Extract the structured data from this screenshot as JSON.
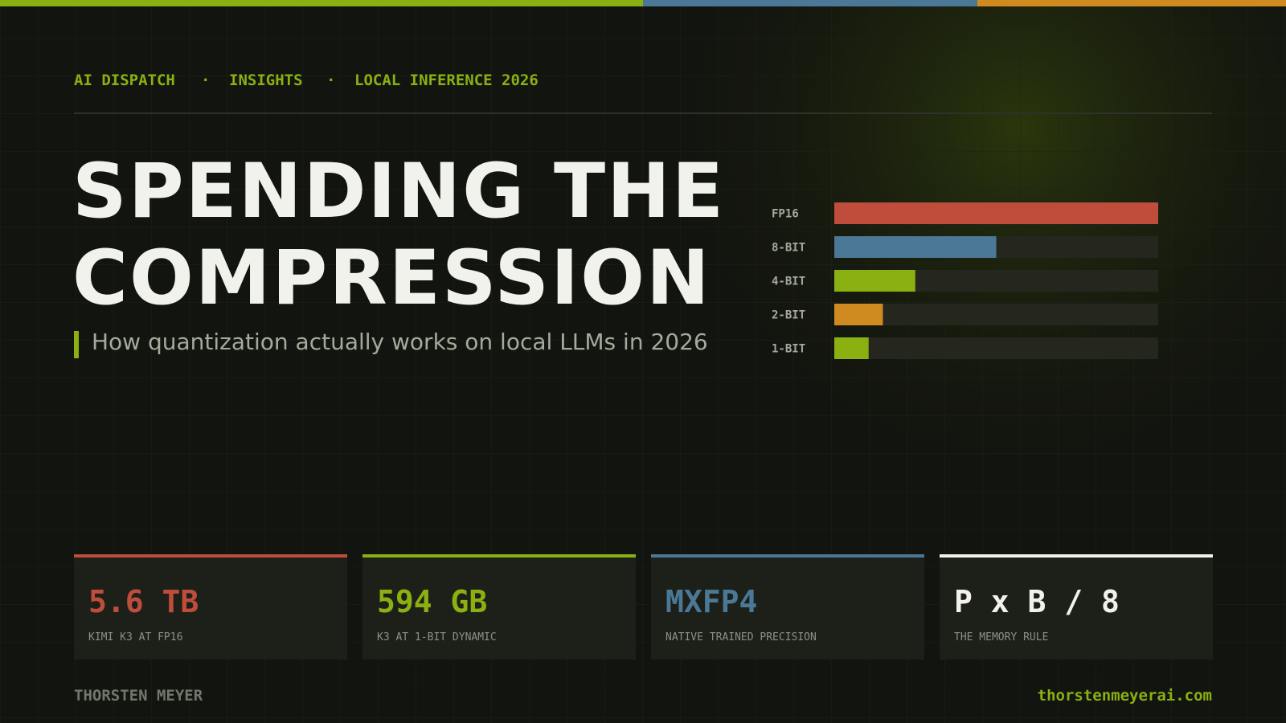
{
  "header": {
    "items": [
      "AI DISPATCH",
      "INSIGHTS",
      "LOCAL INFERENCE 2026"
    ],
    "separator": "·"
  },
  "title": [
    "SPENDING THE",
    "COMPRESSION"
  ],
  "subtitle": "How quantization actually works on local LLMs in 2026",
  "chart_data": {
    "type": "bar",
    "orientation": "horizontal",
    "categories": [
      "FP16",
      "8-BIT",
      "4-BIT",
      "2-BIT",
      "1-BIT"
    ],
    "values": [
      100,
      50,
      25,
      15,
      10.6
    ],
    "colors": [
      "#c04d3c",
      "#4a7896",
      "#8bb012",
      "#cf8a20",
      "#8bb012"
    ],
    "track_color": "#25271f",
    "xlim": [
      0,
      100
    ]
  },
  "stats": [
    {
      "value": "5.6 TB",
      "label": "KIMI K3 AT FP16",
      "color": "#c04d3c"
    },
    {
      "value": "594 GB",
      "label": "K3 AT 1-BIT DYNAMIC",
      "color": "#8bb012"
    },
    {
      "value": "MXFP4",
      "label": "NATIVE TRAINED PRECISION",
      "color": "#4a7896"
    },
    {
      "value": "P x B / 8",
      "label": "THE MEMORY RULE",
      "color": "#f2f2ec"
    }
  ],
  "footer": {
    "author": "THORSTEN MEYER",
    "site": "thorstenmeyerai.com"
  }
}
